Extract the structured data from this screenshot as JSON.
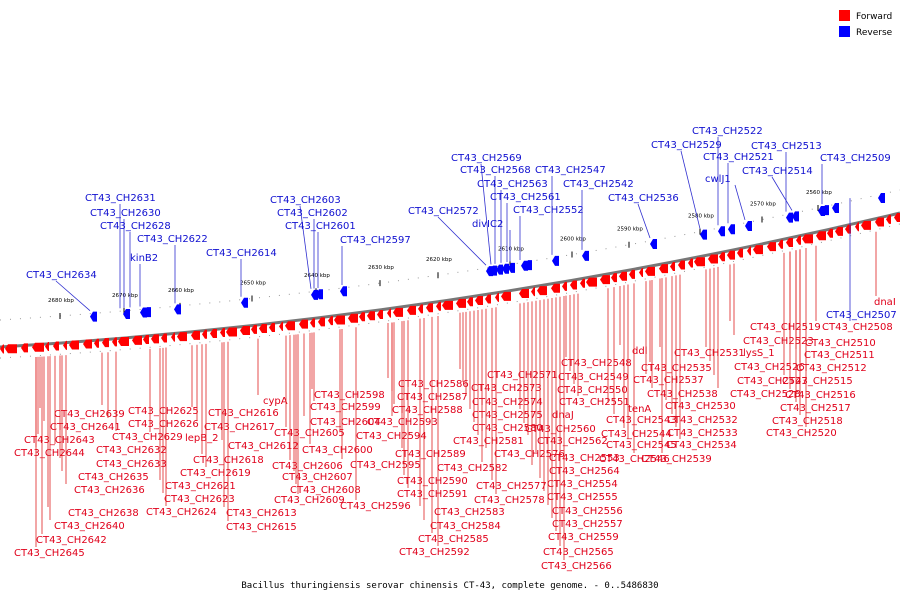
{
  "caption": "Bacillus thuringiensis serovar chinensis CT-43, complete genome. - 0..5486830",
  "legend": [
    {
      "label": "Forward",
      "color": "#ff0000"
    },
    {
      "label": "Reverse",
      "color": "#0000ff"
    }
  ],
  "colors": {
    "forward": "#ff0000",
    "reverse": "#0000ff",
    "axis": "#555555"
  },
  "ticks": [
    "2560 kbp",
    "2570 kbp",
    "2580 kbp",
    "2590 kbp",
    "2600 kbp",
    "2610 kbp",
    "2620 kbp",
    "2630 kbp",
    "2640 kbp",
    "2650 kbp",
    "2660 kbp",
    "2670 kbp",
    "2680 kbp"
  ],
  "reverse_labels": [
    "CT43_CH2634",
    "CT43_CH2631",
    "CT43_CH2630",
    "CT43_CH2628",
    "kinB2",
    "CT43_CH2622",
    "CT43_CH2614",
    "CT43_CH2603",
    "CT43_CH2602",
    "CT43_CH2601",
    "CT43_CH2597",
    "CT43_CH2572",
    "CT43_CH2569",
    "CT43_CH2568",
    "CT43_CH2563",
    "CT43_CH2561",
    "divIC2",
    "CT43_CH2552",
    "CT43_CH2547",
    "CT43_CH2542",
    "CT43_CH2536",
    "CT43_CH2529",
    "CT43_CH2522",
    "CT43_CH2521",
    "cwlJ1",
    "CT43_CH2513",
    "CT43_CH2514",
    "CT43_CH2509",
    "CT43_CH2507"
  ],
  "forward_labels": [
    "CT43_CH2639",
    "CT43_CH2641",
    "CT43_CH2643",
    "CT43_CH2644",
    "CT43_CH2632",
    "CT43_CH2633",
    "CT43_CH2635",
    "CT43_CH2636",
    "CT43_CH2638",
    "CT43_CH2640",
    "CT43_CH2642",
    "CT43_CH2645",
    "CT43_CH2625",
    "CT43_CH2626",
    "CT43_CH2629",
    "lepB_2",
    "CT43_CH2621",
    "CT43_CH2623",
    "CT43_CH2624",
    "CT43_CH2616",
    "CT43_CH2617",
    "CT43_CH2612",
    "CT43_CH2618",
    "CT43_CH2619",
    "CT43_CH2613",
    "CT43_CH2615",
    "cypA",
    "CT43_CH2605",
    "CT43_CH2606",
    "CT43_CH2607",
    "CT43_CH2608",
    "CT43_CH2609",
    "CT43_CH2604",
    "CT43_CH2600",
    "CT43_CH2598",
    "CT43_CH2599",
    "CT43_CH2594",
    "CT43_CH2595",
    "CT43_CH2596",
    "CT43_CH2586",
    "CT43_CH2587",
    "CT43_CH2588",
    "CT43_CH2593",
    "CT43_CH2589",
    "CT43_CH2590",
    "CT43_CH2591",
    "CT43_CH2583",
    "CT43_CH2584",
    "CT43_CH2585",
    "CT43_CH2592",
    "CT43_CH2571",
    "CT43_CH2573",
    "CT43_CH2574",
    "CT43_CH2575",
    "CT43_CH2580",
    "CT43_CH2581",
    "CT43_CH2582",
    "CT43_CH2576",
    "CT43_CH2577",
    "CT43_CH2578",
    "dnaJ",
    "CT43_CH2560",
    "CT43_CH2562",
    "CT43_CH2564",
    "CT43_CH2553",
    "CT43_CH2554",
    "CT43_CH2555",
    "CT43_CH2556",
    "CT43_CH2557",
    "CT43_CH2559",
    "CT43_CH2565",
    "CT43_CH2566",
    "CT43_CH2548",
    "CT43_CH2549",
    "CT43_CH2550",
    "CT43_CH2551",
    "ddl",
    "tenA",
    "CT43_CH2543",
    "CT43_CH2544",
    "CT43_CH2545",
    "CT43_CH2546",
    "CT43_CH2535",
    "CT43_CH2537",
    "CT43_CH2538",
    "CT43_CH2531",
    "CT43_CH2539",
    "CT43_CH2530",
    "CT43_CH2532",
    "CT43_CH2533",
    "CT43_CH2534",
    "lysS_1",
    "CT43_CH2526",
    "CT43_CH2527",
    "CT43_CH2528",
    "CT43_CH2519",
    "CT43_CH2523",
    "CT43_CH2510",
    "CT43_CH2511",
    "CT43_CH2512",
    "CT43_CH2515",
    "CT43_CH2516",
    "CT43_CH2517",
    "CT43_CH2518",
    "CT43_CH2520",
    "CT43_CH2508",
    "dnaI"
  ]
}
